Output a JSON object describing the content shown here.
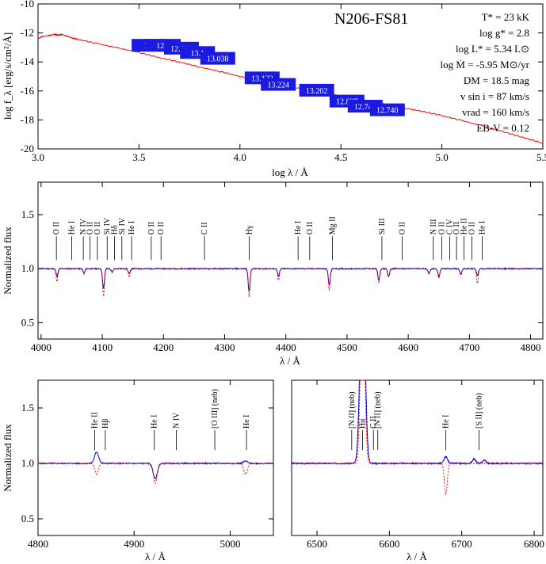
{
  "chart_data": [
    {
      "type": "line",
      "panel": "sed",
      "title": "N206-FS81",
      "xlabel": "log λ / Å",
      "ylabel": "log f_λ [erg/s/cm²/Å]",
      "xlim": [
        3.0,
        5.5
      ],
      "ylim": [
        -20,
        -10
      ],
      "xticks": [
        "3.0",
        "3.5",
        "4.0",
        "4.5",
        "5.0",
        "5.5"
      ],
      "yticks": [
        "-10",
        "-12",
        "-14",
        "-16",
        "-18",
        "-20"
      ],
      "series": [
        {
          "color": "#ff0000",
          "x": [
            3.0,
            3.02,
            3.05,
            3.08,
            3.1,
            3.12,
            3.14,
            3.17,
            3.2,
            3.3,
            3.4,
            3.5,
            3.6,
            3.7,
            3.8,
            3.9,
            4.0,
            4.1,
            4.2,
            4.3,
            4.4,
            4.5,
            4.6,
            4.7,
            4.8,
            4.9,
            5.0,
            5.1,
            5.2,
            5.3,
            5.4,
            5.5
          ],
          "y": [
            -12.4,
            -12.25,
            -12.2,
            -12.1,
            -12.15,
            -12.1,
            -12.2,
            -12.35,
            -12.45,
            -12.75,
            -13.05,
            -13.35,
            -13.7,
            -14.0,
            -14.35,
            -14.65,
            -15.0,
            -15.3,
            -15.6,
            -15.85,
            -16.1,
            -16.35,
            -16.6,
            -16.85,
            -17.15,
            -17.4,
            -17.7,
            -18.05,
            -18.4,
            -18.8,
            -19.2,
            -19.6
          ]
        }
      ],
      "photometry": [
        {
          "label": "12.",
          "x": 3.55,
          "y": -12.85
        },
        {
          "label": "12.8",
          "x": 3.62,
          "y": -12.85
        },
        {
          "label": "12.841",
          "x": 3.71,
          "y": -13.05
        },
        {
          "label": "13.1",
          "x": 3.79,
          "y": -13.35
        },
        {
          "label": "13.038",
          "x": 3.89,
          "y": -13.75
        },
        {
          "label": "13.122",
          "x": 4.11,
          "y": -15.1
        },
        {
          "label": "13.224",
          "x": 4.19,
          "y": -15.55
        },
        {
          "label": "13.202",
          "x": 4.38,
          "y": -15.95
        },
        {
          "label": "12.827",
          "x": 4.53,
          "y": -16.7
        },
        {
          "label": "12.740",
          "x": 4.62,
          "y": -17.05
        },
        {
          "label": "12.740",
          "x": 4.73,
          "y": -17.3
        }
      ]
    },
    {
      "type": "line",
      "panel": "blue_spectrum",
      "xlabel": "λ / Å",
      "ylabel": "Normalized flux",
      "xlim": [
        3995,
        4820
      ],
      "ylim": [
        0.35,
        1.8
      ],
      "xticks": [
        "4000",
        "4100",
        "4200",
        "4300",
        "4400",
        "4500",
        "4600",
        "4700",
        "4800"
      ],
      "yticks": [
        "0.5",
        "1.0",
        "1.5"
      ],
      "series": [
        {
          "color": "#0000cc",
          "lines": [
            [
              4026,
              0.93
            ],
            [
              4070,
              0.96
            ],
            [
              4102,
              0.82
            ],
            [
              4116,
              0.97
            ],
            [
              4144,
              0.95
            ],
            [
              4340,
              0.8
            ],
            [
              4388,
              0.93
            ],
            [
              4471,
              0.85
            ],
            [
              4552,
              0.89
            ],
            [
              4568,
              0.93
            ],
            [
              4634,
              0.96
            ],
            [
              4650,
              0.93
            ],
            [
              4686,
              0.95
            ],
            [
              4713,
              0.94
            ]
          ]
        },
        {
          "color": "#ff0000",
          "dashed": true,
          "lines": [
            [
              4026,
              0.88
            ],
            [
              4070,
              0.95
            ],
            [
              4102,
              0.74
            ],
            [
              4116,
              0.96
            ],
            [
              4144,
              0.92
            ],
            [
              4340,
              0.74
            ],
            [
              4388,
              0.89
            ],
            [
              4471,
              0.8
            ],
            [
              4552,
              0.87
            ],
            [
              4568,
              0.92
            ],
            [
              4634,
              0.95
            ],
            [
              4650,
              0.91
            ],
            [
              4686,
              0.94
            ],
            [
              4713,
              0.86
            ]
          ]
        }
      ],
      "annotations": [
        {
          "text": "O II",
          "x": 4025
        },
        {
          "text": "He I",
          "x": 4050
        },
        {
          "text": "N IV",
          "x": 4069
        },
        {
          "text": "O II",
          "x": 4080
        },
        {
          "text": "O II",
          "x": 4092
        },
        {
          "text": "Si IV",
          "x": 4108
        },
        {
          "text": "Hδ",
          "x": 4120
        },
        {
          "text": "Si IV",
          "x": 4132
        },
        {
          "text": "He I",
          "x": 4148
        },
        {
          "text": "O II",
          "x": 4180
        },
        {
          "text": "O II",
          "x": 4196
        },
        {
          "text": "C II",
          "x": 4267
        },
        {
          "text": "Hγ",
          "x": 4340
        },
        {
          "text": "He I",
          "x": 4420
        },
        {
          "text": "O II",
          "x": 4439
        },
        {
          "text": "Mg II",
          "x": 4476
        },
        {
          "text": "Si III",
          "x": 4557
        },
        {
          "text": "O II",
          "x": 4590
        },
        {
          "text": "N III",
          "x": 4641
        },
        {
          "text": "O II",
          "x": 4655
        },
        {
          "text": "C IV",
          "x": 4668
        },
        {
          "text": "O II",
          "x": 4679
        },
        {
          "text": "He II",
          "x": 4691
        },
        {
          "text": "O II",
          "x": 4704
        },
        {
          "text": "He I",
          "x": 4721
        }
      ]
    },
    {
      "type": "line",
      "panel": "hbeta_spectrum",
      "xlabel": "λ / Å",
      "ylabel": "Normalized flux",
      "xlim": [
        4800,
        5045
      ],
      "ylim": [
        0.35,
        1.75
      ],
      "xticks": [
        "4800",
        "4900",
        "5000"
      ],
      "yticks": [
        "0.5",
        "1.0",
        "1.5"
      ],
      "series": [
        {
          "color": "#0000cc",
          "lines": [
            [
              4861,
              1.1
            ],
            [
              4922,
              0.86
            ],
            [
              5016,
              1.02
            ]
          ]
        },
        {
          "color": "#ff0000",
          "dashed": true,
          "lines": [
            [
              4861,
              0.9
            ],
            [
              4922,
              0.82
            ],
            [
              5016,
              0.9
            ]
          ]
        }
      ],
      "annotations": [
        {
          "text": "He II",
          "x": 4859
        },
        {
          "text": "Hβ",
          "x": 4870
        },
        {
          "text": "He I",
          "x": 4921
        },
        {
          "text": "N IV",
          "x": 4944
        },
        {
          "text": "[O III] (neb)",
          "x": 4984
        },
        {
          "text": "He I",
          "x": 5017
        }
      ]
    },
    {
      "type": "line",
      "panel": "halpha_spectrum",
      "xlabel": "λ / Å",
      "xlim": [
        6465,
        6812
      ],
      "ylim": [
        0.35,
        1.75
      ],
      "xticks": [
        "6500",
        "6600",
        "6700",
        "6800"
      ],
      "series": [
        {
          "color": "#0000cc",
          "lines": [
            [
              6563,
              2.8
            ],
            [
              6678,
              1.06
            ],
            [
              6717,
              1.04
            ],
            [
              6731,
              1.03
            ]
          ]
        },
        {
          "color": "#ff0000",
          "dashed": true,
          "lines": [
            [
              6563,
              2.8
            ],
            [
              6678,
              0.72
            ]
          ]
        }
      ],
      "annotations": [
        {
          "text": "[N II] (neb)",
          "x": 6548
        },
        {
          "text": "Hα",
          "x": 6563
        },
        {
          "text": "C II",
          "x": 6578
        },
        {
          "text": "[N II] (neb)",
          "x": 6584
        },
        {
          "text": "He I",
          "x": 6678
        },
        {
          "text": "[S II] (neb)",
          "x": 6724
        }
      ]
    }
  ],
  "parameters": {
    "teff": "T* = 23 kK",
    "logg": "log g* = 2.8",
    "logl": "log L* = 5.34 L⊙",
    "logm": "log Ṁ = -5.95 M⊙/yr",
    "dm": "DM = 18.5 mag",
    "vsini": "v sin i = 87 km/s",
    "vrad": "vrad = 160 km/s",
    "ebv": "EB-V = 0.12"
  }
}
